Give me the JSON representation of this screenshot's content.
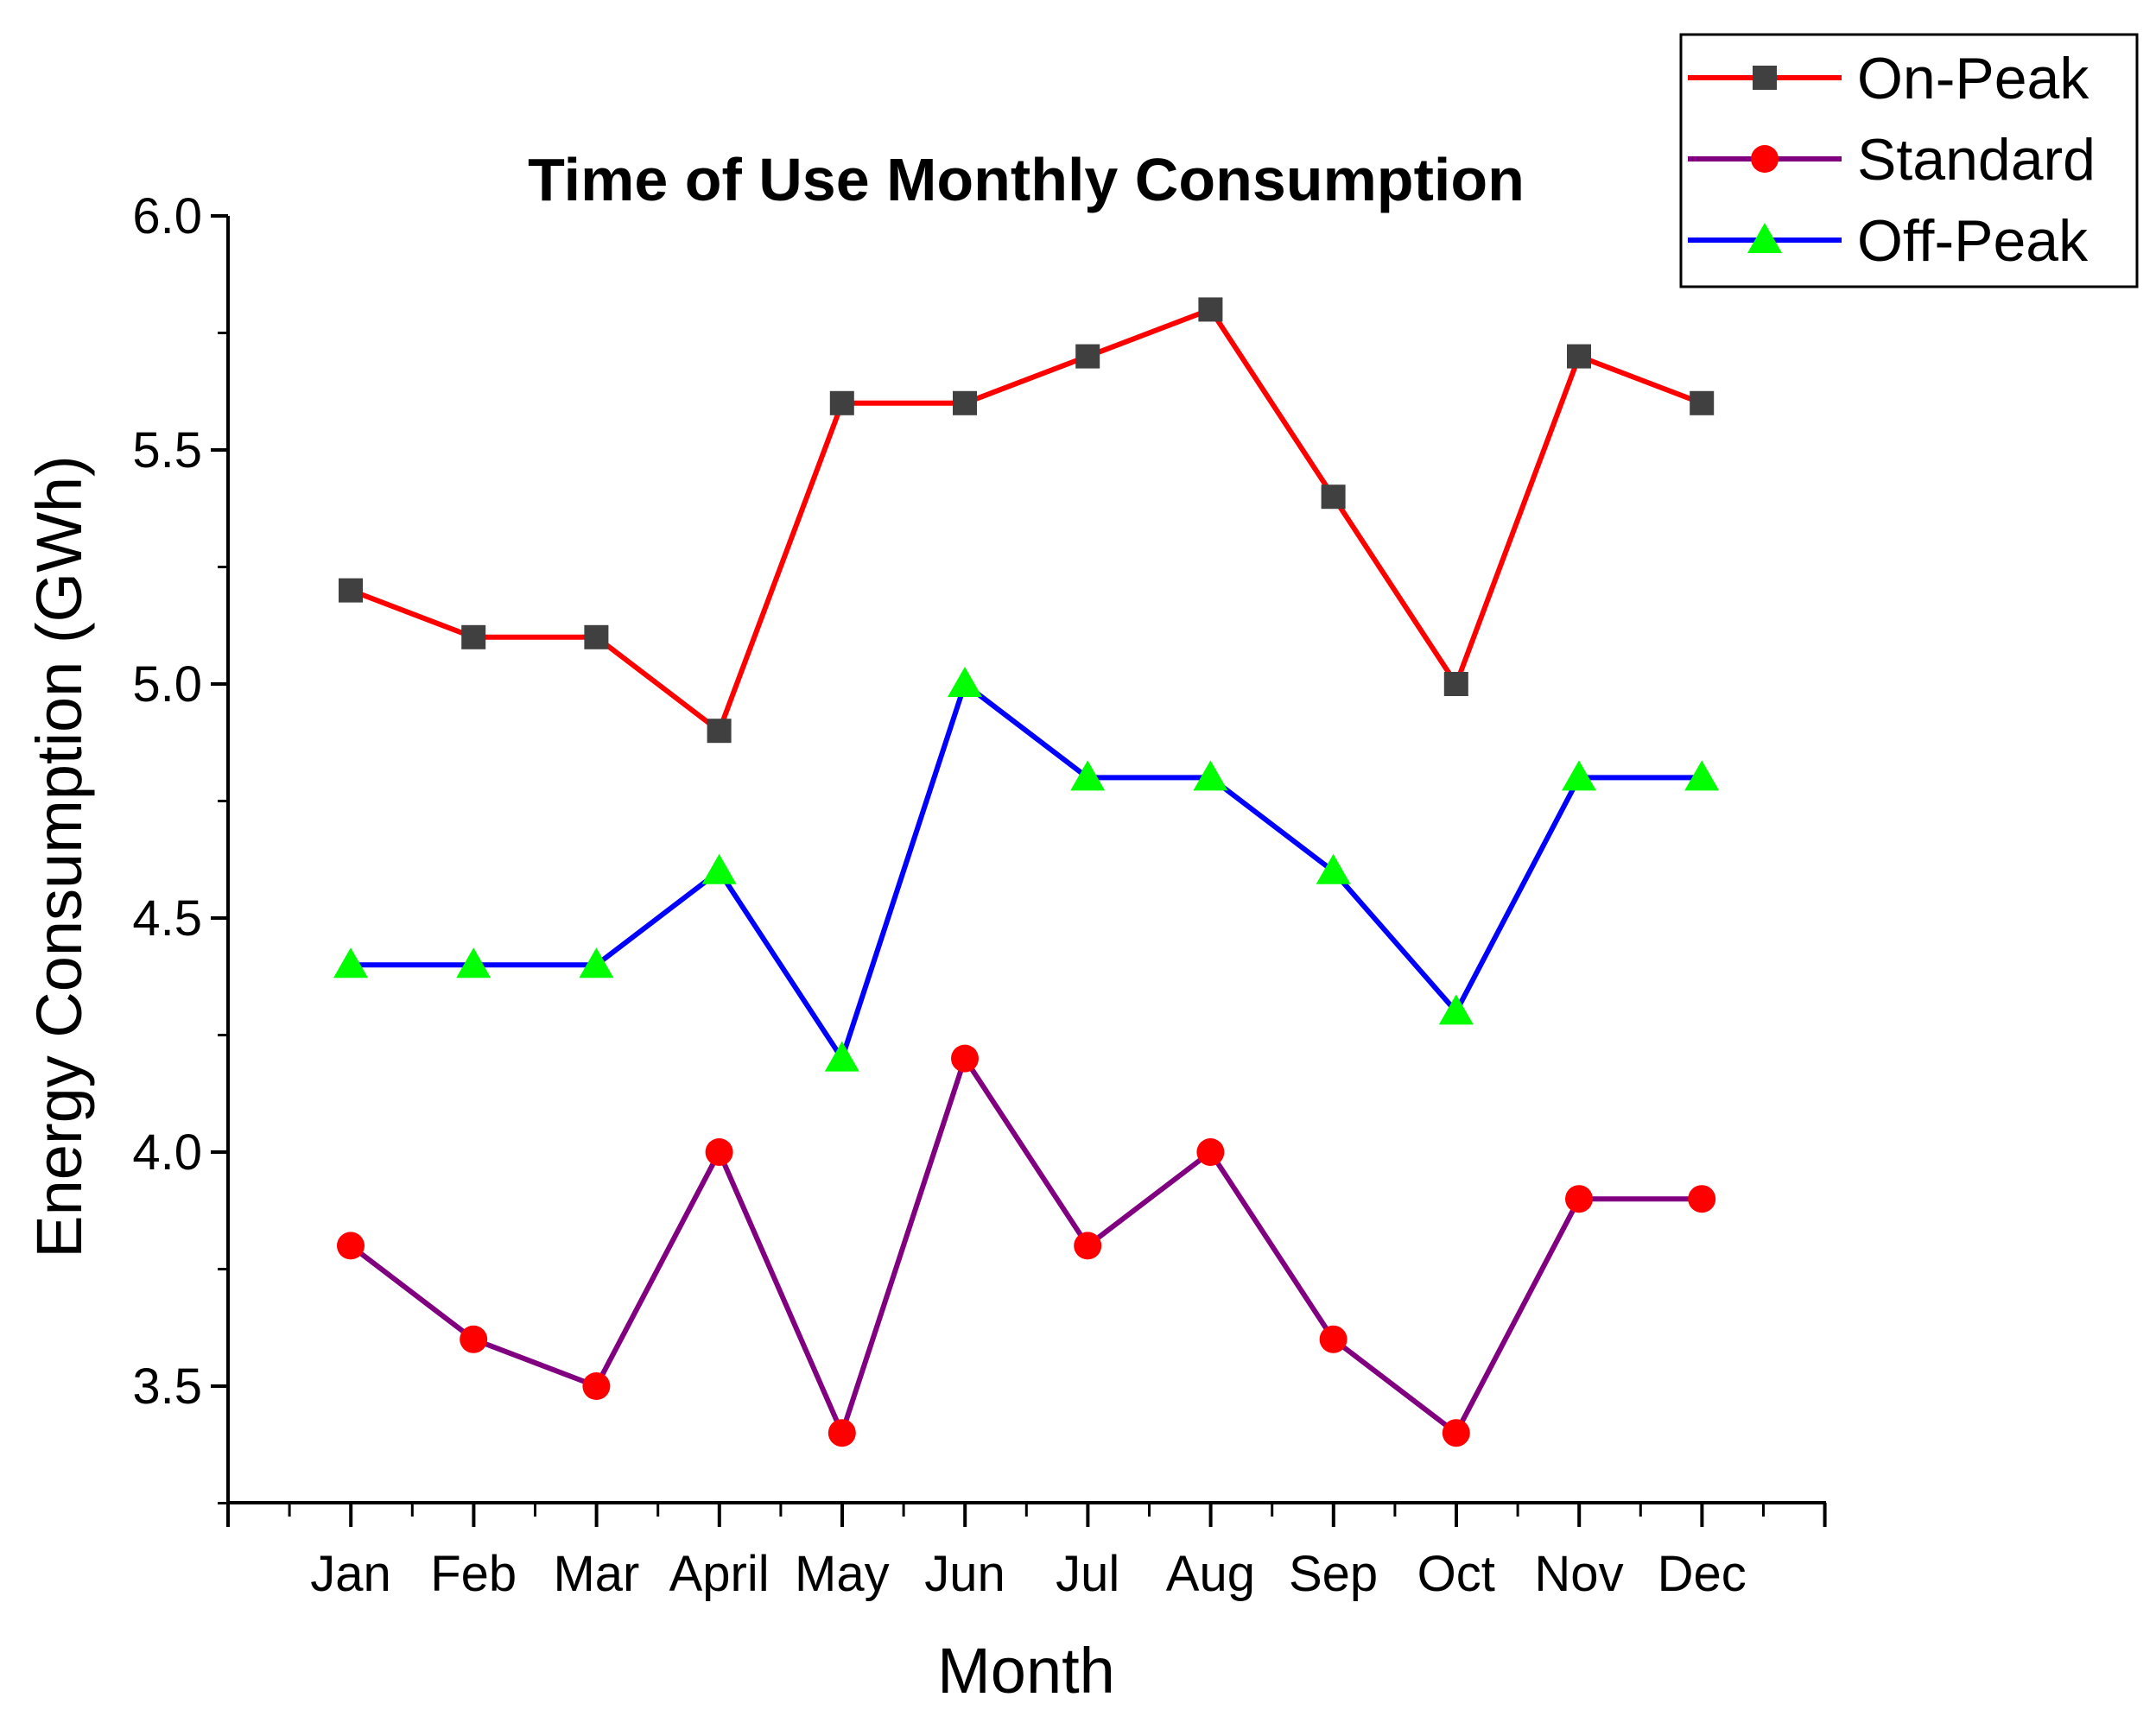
{
  "chart_data": {
    "type": "line",
    "title": "Time of Use Monthly Consumption",
    "xlabel": "Month",
    "ylabel": "Energy Consumption (GWh)",
    "categories": [
      "Jan",
      "Feb",
      "Mar",
      "April",
      "May",
      "Jun",
      "Jul",
      "Aug",
      "Sep",
      "Oct",
      "Nov",
      "Dec"
    ],
    "ylim": [
      3.25,
      6.0
    ],
    "yticks": [
      "3.5",
      "4.0",
      "4.5",
      "5.0",
      "5.5",
      "6.0"
    ],
    "grid": false,
    "legend_position": "top-right",
    "series": [
      {
        "name": "On-Peak",
        "line_color": "#ff0000",
        "marker": "square",
        "marker_color": "#404040",
        "values": [
          5.2,
          5.1,
          5.1,
          4.9,
          5.6,
          5.6,
          5.7,
          5.8,
          5.4,
          5.0,
          5.7,
          5.6
        ]
      },
      {
        "name": "Standard",
        "line_color": "#800080",
        "marker": "circle",
        "marker_color": "#ff0000",
        "values": [
          3.8,
          3.6,
          3.5,
          4.0,
          3.4,
          4.2,
          3.8,
          4.0,
          3.6,
          3.4,
          3.9,
          3.9
        ]
      },
      {
        "name": "Off-Peak",
        "line_color": "#0000ff",
        "marker": "triangle",
        "marker_color": "#00ff00",
        "values": [
          4.4,
          4.4,
          4.4,
          4.6,
          4.2,
          5.0,
          4.8,
          4.8,
          4.6,
          4.3,
          4.8,
          4.8
        ]
      }
    ]
  }
}
